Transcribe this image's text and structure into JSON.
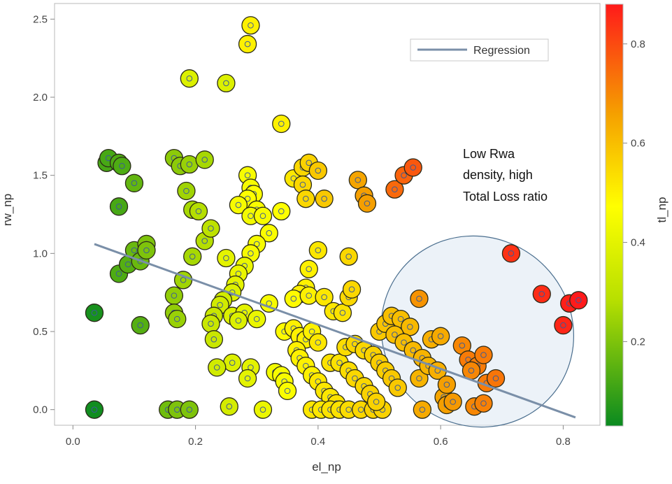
{
  "chart_data": {
    "type": "scatter",
    "xlabel": "el_np",
    "ylabel": "rw_np",
    "colorbar_label": "tl_np",
    "xlim": [
      -0.03,
      0.86
    ],
    "ylim": [
      -0.1,
      2.6
    ],
    "xticks": [
      "0.0",
      "0.2",
      "0.4",
      "0.6",
      "0.8"
    ],
    "xtick_values": [
      0.0,
      0.2,
      0.4,
      0.6,
      0.8
    ],
    "yticks": [
      "0.0",
      "0.5",
      "1.0",
      "1.5",
      "2.0",
      "2.5"
    ],
    "ytick_values": [
      0.0,
      0.5,
      1.0,
      1.5,
      2.0,
      2.5
    ],
    "colorbar": {
      "range": [
        0.03,
        0.88
      ],
      "ticks": [
        "0.2",
        "0.4",
        "0.6",
        "0.8"
      ],
      "tick_values": [
        0.2,
        0.4,
        0.6,
        0.8
      ],
      "stops": [
        "#0a8a20",
        "#b8e000",
        "#ffff00",
        "#f5a000",
        "#ff1a1a"
      ]
    },
    "legend": {
      "position": "top-right",
      "entries": [
        "Regression"
      ]
    },
    "regression": {
      "name": "Regression",
      "x": [
        0.035,
        0.82
      ],
      "y": [
        1.06,
        -0.05
      ],
      "color": "#7a8fa8"
    },
    "annotation": {
      "lines": [
        "Low Rwa",
        "density, high",
        "Total Loss ratio"
      ]
    },
    "highlight_ellipse": {
      "cx": 0.66,
      "cy": 0.5,
      "rx": 0.16,
      "ry": 0.6,
      "rotation_deg": 40
    },
    "grid": false,
    "points": [
      [
        0.035,
        0.0,
        0.04
      ],
      [
        0.035,
        0.62,
        0.05
      ],
      [
        0.055,
        1.58,
        0.12
      ],
      [
        0.058,
        1.61,
        0.12
      ],
      [
        0.075,
        1.58,
        0.13
      ],
      [
        0.08,
        1.56,
        0.13
      ],
      [
        0.075,
        1.3,
        0.12
      ],
      [
        0.075,
        0.87,
        0.13
      ],
      [
        0.09,
        0.93,
        0.14
      ],
      [
        0.1,
        1.45,
        0.16
      ],
      [
        0.1,
        1.02,
        0.17
      ],
      [
        0.11,
        0.95,
        0.17
      ],
      [
        0.12,
        1.06,
        0.2
      ],
      [
        0.12,
        1.02,
        0.2
      ],
      [
        0.11,
        0.54,
        0.14
      ],
      [
        0.155,
        0.0,
        0.18
      ],
      [
        0.17,
        0.0,
        0.2
      ],
      [
        0.19,
        0.0,
        0.2
      ],
      [
        0.165,
        1.61,
        0.22
      ],
      [
        0.175,
        1.56,
        0.22
      ],
      [
        0.19,
        1.57,
        0.24
      ],
      [
        0.215,
        1.6,
        0.26
      ],
      [
        0.185,
        1.4,
        0.25
      ],
      [
        0.195,
        1.28,
        0.26
      ],
      [
        0.205,
        1.27,
        0.28
      ],
      [
        0.195,
        0.98,
        0.26
      ],
      [
        0.215,
        1.08,
        0.28
      ],
      [
        0.225,
        1.16,
        0.3
      ],
      [
        0.18,
        0.83,
        0.25
      ],
      [
        0.165,
        0.73,
        0.23
      ],
      [
        0.165,
        0.62,
        0.23
      ],
      [
        0.17,
        0.58,
        0.24
      ],
      [
        0.19,
        2.12,
        0.38
      ],
      [
        0.25,
        2.09,
        0.38
      ],
      [
        0.285,
        2.34,
        0.5
      ],
      [
        0.29,
        2.46,
        0.5
      ],
      [
        0.34,
        1.83,
        0.5
      ],
      [
        0.285,
        1.5,
        0.45
      ],
      [
        0.29,
        1.42,
        0.45
      ],
      [
        0.295,
        1.38,
        0.47
      ],
      [
        0.285,
        1.35,
        0.47
      ],
      [
        0.27,
        1.31,
        0.45
      ],
      [
        0.3,
        1.28,
        0.46
      ],
      [
        0.29,
        1.24,
        0.44
      ],
      [
        0.31,
        1.24,
        0.45
      ],
      [
        0.34,
        1.27,
        0.47
      ],
      [
        0.32,
        1.13,
        0.46
      ],
      [
        0.3,
        1.06,
        0.45
      ],
      [
        0.29,
        1.0,
        0.45
      ],
      [
        0.25,
        0.97,
        0.4
      ],
      [
        0.28,
        0.92,
        0.42
      ],
      [
        0.27,
        0.87,
        0.42
      ],
      [
        0.265,
        0.8,
        0.4
      ],
      [
        0.26,
        0.75,
        0.38
      ],
      [
        0.245,
        0.7,
        0.35
      ],
      [
        0.24,
        0.67,
        0.35
      ],
      [
        0.23,
        0.6,
        0.33
      ],
      [
        0.225,
        0.55,
        0.33
      ],
      [
        0.23,
        0.45,
        0.33
      ],
      [
        0.26,
        0.6,
        0.38
      ],
      [
        0.28,
        0.62,
        0.4
      ],
      [
        0.27,
        0.57,
        0.38
      ],
      [
        0.3,
        0.58,
        0.42
      ],
      [
        0.32,
        0.68,
        0.45
      ],
      [
        0.26,
        0.3,
        0.38
      ],
      [
        0.235,
        0.27,
        0.35
      ],
      [
        0.29,
        0.27,
        0.4
      ],
      [
        0.285,
        0.2,
        0.4
      ],
      [
        0.255,
        0.02,
        0.36
      ],
      [
        0.31,
        0.0,
        0.42
      ],
      [
        0.33,
        0.24,
        0.44
      ],
      [
        0.34,
        0.22,
        0.45
      ],
      [
        0.345,
        0.18,
        0.45
      ],
      [
        0.35,
        0.12,
        0.46
      ],
      [
        0.36,
        1.48,
        0.52
      ],
      [
        0.375,
        1.55,
        0.55
      ],
      [
        0.385,
        1.58,
        0.56
      ],
      [
        0.4,
        1.53,
        0.58
      ],
      [
        0.375,
        1.44,
        0.55
      ],
      [
        0.38,
        1.35,
        0.55
      ],
      [
        0.41,
        1.35,
        0.58
      ],
      [
        0.4,
        1.02,
        0.52
      ],
      [
        0.45,
        0.98,
        0.55
      ],
      [
        0.385,
        0.9,
        0.5
      ],
      [
        0.38,
        0.78,
        0.5
      ],
      [
        0.37,
        0.74,
        0.5
      ],
      [
        0.36,
        0.71,
        0.48
      ],
      [
        0.385,
        0.73,
        0.5
      ],
      [
        0.41,
        0.72,
        0.52
      ],
      [
        0.425,
        0.63,
        0.52
      ],
      [
        0.44,
        0.62,
        0.53
      ],
      [
        0.45,
        0.72,
        0.55
      ],
      [
        0.455,
        0.77,
        0.55
      ],
      [
        0.345,
        0.5,
        0.48
      ],
      [
        0.36,
        0.52,
        0.5
      ],
      [
        0.37,
        0.47,
        0.5
      ],
      [
        0.38,
        0.45,
        0.5
      ],
      [
        0.39,
        0.5,
        0.5
      ],
      [
        0.4,
        0.43,
        0.52
      ],
      [
        0.365,
        0.38,
        0.5
      ],
      [
        0.37,
        0.33,
        0.5
      ],
      [
        0.38,
        0.28,
        0.5
      ],
      [
        0.39,
        0.22,
        0.5
      ],
      [
        0.4,
        0.18,
        0.52
      ],
      [
        0.41,
        0.12,
        0.52
      ],
      [
        0.42,
        0.08,
        0.52
      ],
      [
        0.43,
        0.04,
        0.53
      ],
      [
        0.39,
        0.0,
        0.52
      ],
      [
        0.405,
        0.0,
        0.52
      ],
      [
        0.42,
        0.0,
        0.53
      ],
      [
        0.435,
        0.0,
        0.53
      ],
      [
        0.45,
        0.0,
        0.54
      ],
      [
        0.47,
        0.0,
        0.55
      ],
      [
        0.49,
        0.0,
        0.56
      ],
      [
        0.505,
        0.0,
        0.56
      ],
      [
        0.42,
        0.3,
        0.53
      ],
      [
        0.435,
        0.3,
        0.53
      ],
      [
        0.45,
        0.25,
        0.54
      ],
      [
        0.46,
        0.2,
        0.55
      ],
      [
        0.475,
        0.15,
        0.55
      ],
      [
        0.485,
        0.1,
        0.56
      ],
      [
        0.495,
        0.05,
        0.56
      ],
      [
        0.445,
        0.4,
        0.54
      ],
      [
        0.46,
        0.42,
        0.55
      ],
      [
        0.475,
        0.38,
        0.55
      ],
      [
        0.49,
        0.35,
        0.56
      ],
      [
        0.5,
        0.3,
        0.57
      ],
      [
        0.51,
        0.25,
        0.57
      ],
      [
        0.52,
        0.2,
        0.58
      ],
      [
        0.53,
        0.14,
        0.58
      ],
      [
        0.5,
        0.5,
        0.58
      ],
      [
        0.51,
        0.55,
        0.59
      ],
      [
        0.52,
        0.6,
        0.6
      ],
      [
        0.535,
        0.58,
        0.6
      ],
      [
        0.55,
        0.53,
        0.61
      ],
      [
        0.525,
        0.48,
        0.6
      ],
      [
        0.54,
        0.43,
        0.6
      ],
      [
        0.555,
        0.38,
        0.61
      ],
      [
        0.57,
        0.33,
        0.62
      ],
      [
        0.565,
        0.2,
        0.62
      ],
      [
        0.58,
        0.28,
        0.62
      ],
      [
        0.595,
        0.25,
        0.63
      ],
      [
        0.585,
        0.45,
        0.63
      ],
      [
        0.6,
        0.47,
        0.64
      ],
      [
        0.565,
        0.71,
        0.68
      ],
      [
        0.57,
        0.0,
        0.64
      ],
      [
        0.605,
        0.08,
        0.65
      ],
      [
        0.61,
        0.03,
        0.66
      ],
      [
        0.62,
        0.05,
        0.67
      ],
      [
        0.61,
        0.16,
        0.66
      ],
      [
        0.635,
        0.41,
        0.7
      ],
      [
        0.645,
        0.32,
        0.72
      ],
      [
        0.66,
        0.28,
        0.72
      ],
      [
        0.65,
        0.25,
        0.7
      ],
      [
        0.67,
        0.35,
        0.72
      ],
      [
        0.655,
        0.02,
        0.7
      ],
      [
        0.67,
        0.04,
        0.71
      ],
      [
        0.675,
        0.17,
        0.72
      ],
      [
        0.69,
        0.2,
        0.73
      ],
      [
        0.465,
        1.47,
        0.65
      ],
      [
        0.475,
        1.37,
        0.66
      ],
      [
        0.48,
        1.32,
        0.66
      ],
      [
        0.525,
        1.41,
        0.75
      ],
      [
        0.54,
        1.5,
        0.76
      ],
      [
        0.555,
        1.55,
        0.78
      ],
      [
        0.715,
        1.0,
        0.84
      ],
      [
        0.765,
        0.74,
        0.85
      ],
      [
        0.8,
        0.54,
        0.86
      ],
      [
        0.81,
        0.68,
        0.87
      ],
      [
        0.825,
        0.7,
        0.88
      ]
    ]
  }
}
